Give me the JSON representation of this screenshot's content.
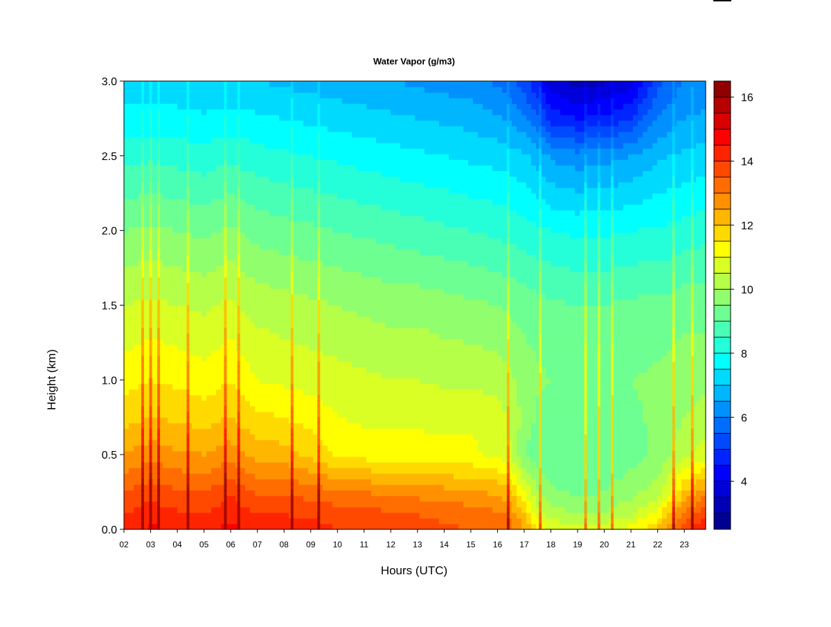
{
  "chart_data": {
    "type": "heatmap",
    "title": "Water Vapor (g/m3)",
    "xlabel": "Hours (UTC)",
    "ylabel": "Height (km)",
    "xlim": [
      2,
      23.8
    ],
    "ylim": [
      0,
      3
    ],
    "x_ticks": [
      "02",
      "03",
      "04",
      "05",
      "06",
      "07",
      "08",
      "09",
      "10",
      "11",
      "12",
      "13",
      "14",
      "15",
      "16",
      "17",
      "18",
      "19",
      "20",
      "21",
      "22",
      "23"
    ],
    "y_ticks": [
      "0.0",
      "0.5",
      "1.0",
      "1.5",
      "2.0",
      "2.5",
      "3.0"
    ],
    "colorbar": {
      "min": 2.5,
      "max": 16.5,
      "step": 0.5,
      "ticks": [
        "4",
        "6",
        "8",
        "10",
        "12",
        "14",
        "16"
      ]
    },
    "colormap": [
      "#00007f",
      "#0000ff",
      "#007fff",
      "#00ffff",
      "#7fff7f",
      "#ffff00",
      "#ff7f00",
      "#ff0000",
      "#7f0000"
    ],
    "field": {
      "x_hours": [
        2,
        3,
        4,
        5,
        6,
        7,
        8,
        9,
        10,
        11,
        12,
        13,
        14,
        15,
        16,
        16.5,
        17,
        17.5,
        18,
        19,
        20,
        21,
        22,
        22.5,
        23,
        23.8
      ],
      "height_km": [
        0,
        0.1,
        0.25,
        0.5,
        0.75,
        1.0,
        1.5,
        2.0,
        2.5,
        2.75,
        3.0
      ],
      "values": [
        [
          14.3,
          14.0,
          13.5,
          12.5,
          11.8,
          11.3,
          10.5,
          9.5,
          8.3,
          7.7,
          7.2
        ],
        [
          14.6,
          14.3,
          13.8,
          12.8,
          12.0,
          11.5,
          10.6,
          9.6,
          8.4,
          7.7,
          7.2
        ],
        [
          14.4,
          14.1,
          13.6,
          12.6,
          11.9,
          11.4,
          10.5,
          9.5,
          8.3,
          7.7,
          7.1
        ],
        [
          14.3,
          14.0,
          13.5,
          12.5,
          11.8,
          11.2,
          10.4,
          9.4,
          8.2,
          7.6,
          7.0
        ],
        [
          14.7,
          14.4,
          13.9,
          12.8,
          12.0,
          11.5,
          10.6,
          9.6,
          8.4,
          7.7,
          7.1
        ],
        [
          14.3,
          14.0,
          13.4,
          12.3,
          11.6,
          11.0,
          10.3,
          9.3,
          8.2,
          7.6,
          7.0
        ],
        [
          14.3,
          14.0,
          13.4,
          12.2,
          11.5,
          10.9,
          10.2,
          9.2,
          8.1,
          7.5,
          6.9
        ],
        [
          14.2,
          13.9,
          13.3,
          11.9,
          11.3,
          10.8,
          10.1,
          9.1,
          8.0,
          7.4,
          6.8
        ],
        [
          14.0,
          13.8,
          13.1,
          11.4,
          11.0,
          10.7,
          10.0,
          9.0,
          7.9,
          7.3,
          6.7
        ],
        [
          13.9,
          13.7,
          13.0,
          11.3,
          10.9,
          10.6,
          9.9,
          8.9,
          7.8,
          7.2,
          6.6
        ],
        [
          13.8,
          13.6,
          12.9,
          11.2,
          10.9,
          10.5,
          9.8,
          8.8,
          7.7,
          7.1,
          6.5
        ],
        [
          13.7,
          13.5,
          12.8,
          11.2,
          10.9,
          10.5,
          9.8,
          8.7,
          7.6,
          7.0,
          6.4
        ],
        [
          13.6,
          13.4,
          12.7,
          11.1,
          10.9,
          10.4,
          9.7,
          8.6,
          7.5,
          6.9,
          6.3
        ],
        [
          13.5,
          13.3,
          12.6,
          11.1,
          10.9,
          10.4,
          9.6,
          8.5,
          7.4,
          6.8,
          6.2
        ],
        [
          13.3,
          13.1,
          12.4,
          10.9,
          10.7,
          10.3,
          9.5,
          8.4,
          7.3,
          6.6,
          5.9
        ],
        [
          13.2,
          12.9,
          12.0,
          10.5,
          10.4,
          10.1,
          9.4,
          8.3,
          7.2,
          6.4,
          5.6
        ],
        [
          12.5,
          12.0,
          11.0,
          9.5,
          9.8,
          9.8,
          9.3,
          8.2,
          7.1,
          6.1,
          5.2
        ],
        [
          11.5,
          10.8,
          10.0,
          9.2,
          9.4,
          9.6,
          9.2,
          8.1,
          6.8,
          5.6,
          4.6
        ],
        [
          11.0,
          10.3,
          9.6,
          9.1,
          9.3,
          9.5,
          9.1,
          8.0,
          6.4,
          4.8,
          3.7
        ],
        [
          10.8,
          10.0,
          9.4,
          9.0,
          9.2,
          9.4,
          9.0,
          7.9,
          6.2,
          4.5,
          3.3
        ],
        [
          10.9,
          10.1,
          9.5,
          9.1,
          9.3,
          9.4,
          9.0,
          7.9,
          6.3,
          4.6,
          3.4
        ],
        [
          11.2,
          10.4,
          9.8,
          9.3,
          9.4,
          9.5,
          9.1,
          8.0,
          6.5,
          5.0,
          3.8
        ],
        [
          12.0,
          11.2,
          10.3,
          9.6,
          9.6,
          9.6,
          9.2,
          8.1,
          6.9,
          6.0,
          5.3
        ],
        [
          13.0,
          12.3,
          11.0,
          10.0,
          9.8,
          9.7,
          9.2,
          8.1,
          7.0,
          6.3,
          5.7
        ],
        [
          13.8,
          13.2,
          12.0,
          10.4,
          10.0,
          9.8,
          9.3,
          8.2,
          7.1,
          6.5,
          6.0
        ],
        [
          14.6,
          14.0,
          12.8,
          10.8,
          10.2,
          9.9,
          9.3,
          8.3,
          7.2,
          6.6,
          6.1
        ]
      ],
      "moist_plumes_hours": [
        2.7,
        3.0,
        3.3,
        4.4,
        5.8,
        6.3,
        8.3,
        9.3,
        16.4,
        17.6,
        19.3,
        19.8,
        20.3,
        22.6,
        23.3
      ]
    }
  }
}
